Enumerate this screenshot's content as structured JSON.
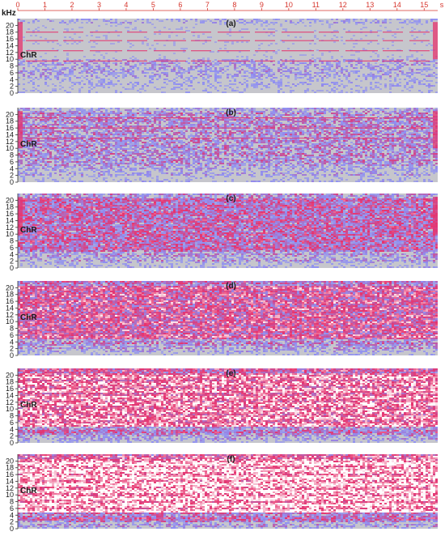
{
  "chart_data": {
    "type": "heatmap",
    "title": "",
    "x_axis": {
      "unit_label": "s",
      "range": [
        0,
        15.5
      ],
      "ticks": [
        0,
        1,
        2,
        3,
        4,
        5,
        6,
        7,
        8,
        9,
        10,
        11,
        12,
        13,
        14,
        15
      ],
      "tick_labels": [
        "0",
        "1",
        "2",
        "3",
        "4",
        "5",
        "6",
        "7",
        "8",
        "9",
        "10",
        "11",
        "12",
        "13",
        "14",
        "15"
      ],
      "tick_color": "#d6342b"
    },
    "y_axis": {
      "unit_label": "kHz",
      "range": [
        0,
        22
      ],
      "ticks": [
        0,
        2,
        4,
        6,
        8,
        10,
        12,
        14,
        16,
        18,
        20
      ],
      "tick_labels": [
        "0",
        "2",
        "4",
        "6",
        "8",
        "10",
        "12",
        "14",
        "16",
        "18",
        "20"
      ]
    },
    "band_label": "ChR",
    "band_label_freq_khz": 10.5,
    "colors": {
      "low": "#c6c6cc",
      "mid": "#8f8ff2",
      "high": "#e6336e",
      "peak": "#ffffff"
    },
    "panels": [
      {
        "label": "(a)",
        "intensity": 0.18,
        "tonal_lines_khz": [
          18,
          15.5,
          12.5,
          9.5
        ],
        "edge_bursts": true
      },
      {
        "label": "(b)",
        "intensity": 0.32,
        "tonal_lines_khz": [
          19,
          16,
          13
        ],
        "edge_bursts": true
      },
      {
        "label": "(c)",
        "intensity": 0.48,
        "tonal_lines_khz": [],
        "edge_bursts": true
      },
      {
        "label": "(d)",
        "intensity": 0.64,
        "tonal_lines_khz": [],
        "edge_bursts": false
      },
      {
        "label": "(e)",
        "intensity": 0.8,
        "tonal_lines_khz": [],
        "edge_bursts": false
      },
      {
        "label": "(f)",
        "intensity": 0.92,
        "tonal_lines_khz": [],
        "edge_bursts": false
      }
    ]
  }
}
